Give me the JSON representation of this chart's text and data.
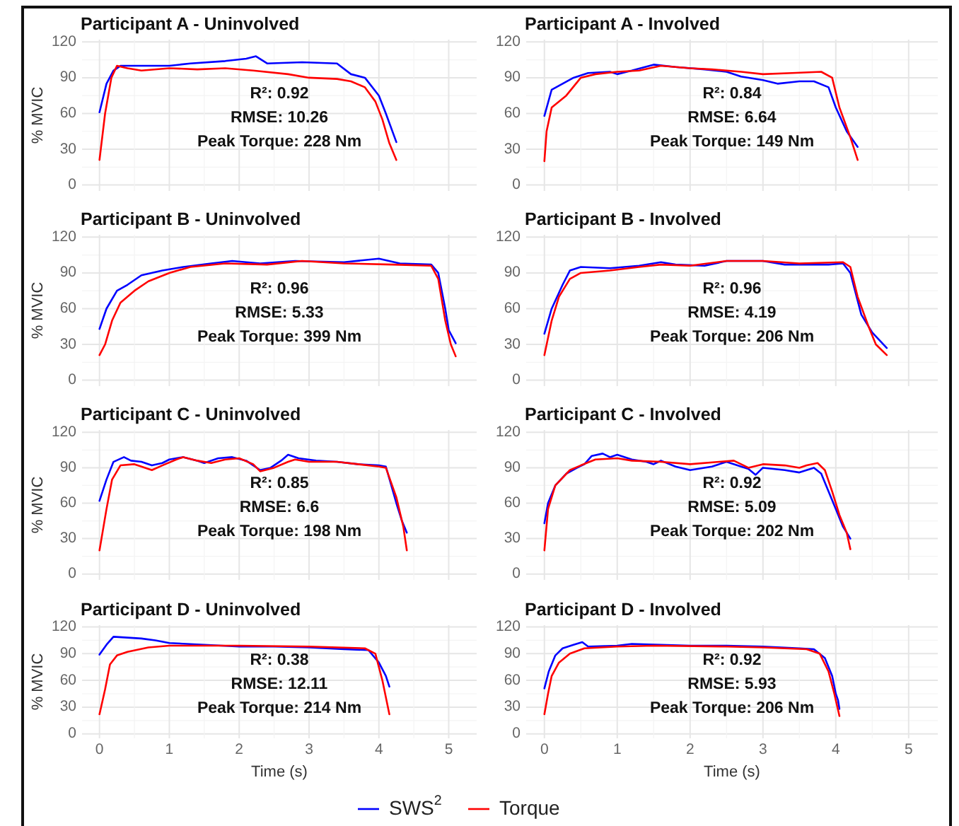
{
  "chart_data": [
    {
      "type": "line",
      "title": "Participant A - Uninvolved",
      "ylabel": "% MVIC",
      "xlim": [
        -0.25,
        5.4
      ],
      "ylim": [
        -5,
        122
      ],
      "xticks": [
        0,
        {
          "value": 0.5,
          "label": null
        },
        1,
        {
          "value": 1.5,
          "label": null
        },
        2,
        {
          "value": 2.5,
          "label": null
        },
        3,
        {
          "value": 3.5,
          "label": null
        },
        4,
        {
          "value": 4.5,
          "label": null
        },
        5
      ],
      "yticks": [
        0,
        {
          "value": 15,
          "label": null
        },
        30,
        {
          "value": 45,
          "label": null
        },
        60,
        {
          "value": 75,
          "label": null
        },
        90,
        {
          "value": 105,
          "label": null
        },
        120
      ],
      "grid": true,
      "tick_labels": "y",
      "annotations": [
        "R²: 0.92",
        "RMSE: 10.26",
        "Peak Torque: 228 Nm"
      ],
      "series": [
        {
          "color": "#0000ff",
          "x": [
            0,
            0.1,
            0.2,
            0.3,
            0.6,
            1.0,
            1.3,
            1.8,
            2.1,
            2.24,
            2.4,
            2.9,
            3.4,
            3.6,
            3.8,
            4.0,
            4.1,
            4.25
          ],
          "values": [
            61,
            85,
            96,
            100,
            100,
            100,
            102,
            104,
            106,
            108,
            102,
            103,
            102,
            93,
            90,
            75,
            60,
            36
          ]
        },
        {
          "color": "#ff0000",
          "x": [
            0,
            0.08,
            0.17,
            0.25,
            0.4,
            0.6,
            1.0,
            1.4,
            1.8,
            2.2,
            2.7,
            3.0,
            3.4,
            3.6,
            3.8,
            3.95,
            4.05,
            4.15,
            4.25
          ],
          "values": [
            21,
            60,
            90,
            100,
            98,
            96,
            98,
            97,
            98,
            96,
            93,
            90,
            89,
            87,
            82,
            70,
            55,
            35,
            21
          ]
        }
      ]
    },
    {
      "type": "line",
      "title": "Participant A - Involved",
      "xlim": [
        -0.25,
        5.4
      ],
      "ylim": [
        -5,
        122
      ],
      "xticks": [
        0,
        {
          "value": 0.5,
          "label": null
        },
        1,
        {
          "value": 1.5,
          "label": null
        },
        2,
        {
          "value": 2.5,
          "label": null
        },
        3,
        {
          "value": 3.5,
          "label": null
        },
        4,
        {
          "value": 4.5,
          "label": null
        },
        5
      ],
      "yticks": [
        0,
        {
          "value": 15,
          "label": null
        },
        30,
        {
          "value": 45,
          "label": null
        },
        60,
        {
          "value": 75,
          "label": null
        },
        90,
        {
          "value": 105,
          "label": null
        },
        120
      ],
      "grid": true,
      "tick_labels": "y",
      "annotations": [
        "R²: 0.84",
        "RMSE: 6.64",
        "Peak Torque: 149 Nm"
      ],
      "series": [
        {
          "color": "#0000ff",
          "x": [
            0,
            0.1,
            0.25,
            0.4,
            0.6,
            0.9,
            1.0,
            1.2,
            1.5,
            1.8,
            2.2,
            2.5,
            2.7,
            3.0,
            3.2,
            3.5,
            3.7,
            3.9,
            4.0,
            4.15,
            4.3
          ],
          "values": [
            58,
            80,
            85,
            90,
            94,
            95,
            93,
            96,
            101,
            99,
            97,
            95,
            91,
            88,
            85,
            87,
            87,
            82,
            65,
            45,
            32
          ]
        },
        {
          "color": "#ff0000",
          "x": [
            0,
            0.03,
            0.1,
            0.3,
            0.5,
            0.7,
            1.0,
            1.3,
            1.6,
            2.0,
            2.3,
            2.7,
            3.0,
            3.4,
            3.8,
            3.95,
            4.05,
            4.2,
            4.3
          ],
          "values": [
            20,
            45,
            65,
            75,
            90,
            93,
            95,
            96,
            100,
            98,
            97,
            95,
            93,
            94,
            95,
            90,
            65,
            40,
            21
          ]
        }
      ]
    },
    {
      "type": "line",
      "title": "Participant B - Uninvolved",
      "ylabel": "% MVIC",
      "xlim": [
        -0.25,
        5.4
      ],
      "ylim": [
        -5,
        122
      ],
      "xticks": [
        0,
        {
          "value": 0.5,
          "label": null
        },
        1,
        {
          "value": 1.5,
          "label": null
        },
        2,
        {
          "value": 2.5,
          "label": null
        },
        3,
        {
          "value": 3.5,
          "label": null
        },
        4,
        {
          "value": 4.5,
          "label": null
        },
        5
      ],
      "yticks": [
        0,
        {
          "value": 15,
          "label": null
        },
        30,
        {
          "value": 45,
          "label": null
        },
        60,
        {
          "value": 75,
          "label": null
        },
        90,
        {
          "value": 105,
          "label": null
        },
        120
      ],
      "grid": true,
      "tick_labels": "y",
      "annotations": [
        "R²: 0.96",
        "RMSE: 5.33",
        "Peak Torque: 399 Nm"
      ],
      "series": [
        {
          "color": "#0000ff",
          "x": [
            0,
            0.1,
            0.25,
            0.4,
            0.6,
            0.9,
            1.2,
            1.6,
            1.9,
            2.3,
            2.8,
            3.5,
            4.0,
            4.3,
            4.75,
            4.85,
            4.95,
            5.0,
            5.1
          ],
          "values": [
            43,
            60,
            75,
            80,
            88,
            92,
            95,
            98,
            100,
            98,
            100,
            99,
            102,
            98,
            97,
            90,
            60,
            42,
            31
          ]
        },
        {
          "color": "#ff0000",
          "x": [
            0,
            0.08,
            0.18,
            0.3,
            0.5,
            0.7,
            1.0,
            1.3,
            1.8,
            2.4,
            2.9,
            3.5,
            4.2,
            4.75,
            4.85,
            4.95,
            5.03,
            5.1
          ],
          "values": [
            21,
            30,
            50,
            65,
            75,
            83,
            90,
            95,
            98,
            97,
            100,
            98,
            97,
            96,
            85,
            50,
            30,
            20
          ]
        }
      ]
    },
    {
      "type": "line",
      "title": "Participant B - Involved",
      "xlim": [
        -0.25,
        5.4
      ],
      "ylim": [
        -5,
        122
      ],
      "xticks": [
        0,
        {
          "value": 0.5,
          "label": null
        },
        1,
        {
          "value": 1.5,
          "label": null
        },
        2,
        {
          "value": 2.5,
          "label": null
        },
        3,
        {
          "value": 3.5,
          "label": null
        },
        4,
        {
          "value": 4.5,
          "label": null
        },
        5
      ],
      "yticks": [
        0,
        {
          "value": 15,
          "label": null
        },
        30,
        {
          "value": 45,
          "label": null
        },
        60,
        {
          "value": 75,
          "label": null
        },
        90,
        {
          "value": 105,
          "label": null
        },
        120
      ],
      "grid": true,
      "tick_labels": "y",
      "annotations": [
        "R²: 0.96",
        "RMSE: 4.19",
        "Peak Torque: 206 Nm"
      ],
      "series": [
        {
          "color": "#0000ff",
          "x": [
            0,
            0.1,
            0.25,
            0.35,
            0.5,
            0.9,
            1.3,
            1.6,
            1.8,
            2.2,
            2.5,
            3.0,
            3.3,
            3.9,
            4.1,
            4.2,
            4.35,
            4.5,
            4.7
          ],
          "values": [
            39,
            60,
            80,
            92,
            95,
            94,
            96,
            99,
            97,
            96,
            100,
            100,
            97,
            97,
            98,
            90,
            55,
            40,
            27
          ]
        },
        {
          "color": "#ff0000",
          "x": [
            0,
            0.1,
            0.2,
            0.35,
            0.5,
            0.9,
            1.3,
            1.6,
            2.0,
            2.5,
            3.0,
            3.5,
            4.1,
            4.2,
            4.3,
            4.45,
            4.55,
            4.7
          ],
          "values": [
            21,
            50,
            70,
            85,
            90,
            92,
            95,
            97,
            96,
            100,
            100,
            98,
            99,
            95,
            70,
            45,
            30,
            21
          ]
        }
      ]
    },
    {
      "type": "line",
      "title": "Participant C - Uninvolved",
      "ylabel": "% MVIC",
      "xlim": [
        -0.25,
        5.4
      ],
      "ylim": [
        -5,
        122
      ],
      "xticks": [
        0,
        {
          "value": 0.5,
          "label": null
        },
        1,
        {
          "value": 1.5,
          "label": null
        },
        2,
        {
          "value": 2.5,
          "label": null
        },
        3,
        {
          "value": 3.5,
          "label": null
        },
        4,
        {
          "value": 4.5,
          "label": null
        },
        5
      ],
      "yticks": [
        0,
        {
          "value": 15,
          "label": null
        },
        30,
        {
          "value": 45,
          "label": null
        },
        60,
        {
          "value": 75,
          "label": null
        },
        90,
        {
          "value": 105,
          "label": null
        },
        120
      ],
      "grid": true,
      "tick_labels": "y",
      "annotations": [
        "R²: 0.85",
        "RMSE: 6.6",
        "Peak Torque: 198 Nm"
      ],
      "series": [
        {
          "color": "#0000ff",
          "x": [
            0,
            0.1,
            0.2,
            0.35,
            0.45,
            0.6,
            0.75,
            0.9,
            1.0,
            1.2,
            1.4,
            1.5,
            1.7,
            1.9,
            2.1,
            2.3,
            2.45,
            2.6,
            2.7,
            2.85,
            3.1,
            3.4,
            3.7,
            4.0,
            4.1,
            4.25,
            4.33,
            4.4
          ],
          "values": [
            62,
            80,
            95,
            99,
            96,
            95,
            92,
            94,
            97,
            99,
            96,
            94,
            98,
            99,
            96,
            88,
            90,
            96,
            101,
            98,
            96,
            95,
            93,
            92,
            91,
            60,
            45,
            35
          ]
        },
        {
          "color": "#ff0000",
          "x": [
            0,
            0.1,
            0.18,
            0.3,
            0.5,
            0.6,
            0.75,
            0.9,
            1.1,
            1.2,
            1.4,
            1.6,
            1.8,
            2.0,
            2.2,
            2.3,
            2.5,
            2.7,
            2.8,
            3.0,
            3.4,
            3.7,
            4.0,
            4.1,
            4.25,
            4.35,
            4.4
          ],
          "values": [
            20,
            55,
            80,
            92,
            93,
            91,
            88,
            92,
            97,
            99,
            96,
            94,
            97,
            98,
            93,
            87,
            90,
            95,
            97,
            95,
            95,
            93,
            91,
            90,
            65,
            40,
            20
          ]
        }
      ]
    },
    {
      "type": "line",
      "title": "Participant C - Involved",
      "xlim": [
        -0.25,
        5.4
      ],
      "ylim": [
        -5,
        122
      ],
      "xticks": [
        0,
        {
          "value": 0.5,
          "label": null
        },
        1,
        {
          "value": 1.5,
          "label": null
        },
        2,
        {
          "value": 2.5,
          "label": null
        },
        3,
        {
          "value": 3.5,
          "label": null
        },
        4,
        {
          "value": 4.5,
          "label": null
        },
        5
      ],
      "yticks": [
        0,
        {
          "value": 15,
          "label": null
        },
        30,
        {
          "value": 45,
          "label": null
        },
        60,
        {
          "value": 75,
          "label": null
        },
        90,
        {
          "value": 105,
          "label": null
        },
        120
      ],
      "grid": true,
      "tick_labels": "y",
      "annotations": [
        "R²: 0.92",
        "RMSE: 5.09",
        "Peak Torque: 202 Nm"
      ],
      "series": [
        {
          "color": "#0000ff",
          "x": [
            0,
            0.05,
            0.15,
            0.3,
            0.45,
            0.55,
            0.65,
            0.8,
            0.9,
            1.0,
            1.2,
            1.4,
            1.5,
            1.6,
            1.8,
            2.0,
            2.3,
            2.5,
            2.7,
            2.8,
            2.9,
            3.0,
            3.3,
            3.5,
            3.7,
            3.8,
            3.9,
            4.0,
            4.1,
            4.2
          ],
          "values": [
            43,
            60,
            75,
            85,
            90,
            93,
            100,
            102,
            99,
            101,
            97,
            95,
            93,
            96,
            91,
            88,
            91,
            95,
            91,
            89,
            84,
            90,
            88,
            86,
            90,
            85,
            70,
            55,
            40,
            30
          ]
        },
        {
          "color": "#ff0000",
          "x": [
            0,
            0.05,
            0.15,
            0.35,
            0.5,
            0.7,
            1.0,
            1.2,
            1.6,
            2.0,
            2.4,
            2.6,
            2.8,
            3.0,
            3.3,
            3.5,
            3.6,
            3.75,
            3.85,
            3.95,
            4.05,
            4.15,
            4.2
          ],
          "values": [
            20,
            55,
            75,
            88,
            92,
            97,
            98,
            96,
            95,
            93,
            95,
            96,
            90,
            93,
            92,
            90,
            92,
            94,
            88,
            70,
            50,
            35,
            21
          ]
        }
      ]
    },
    {
      "type": "line",
      "title": "Participant D - Uninvolved",
      "ylabel": "% MVIC",
      "xlabel": "Time (s)",
      "xlim": [
        -0.25,
        5.4
      ],
      "ylim": [
        -5,
        122
      ],
      "xticks": [
        0,
        {
          "value": 0.5,
          "label": null
        },
        1,
        {
          "value": 1.5,
          "label": null
        },
        2,
        {
          "value": 2.5,
          "label": null
        },
        3,
        {
          "value": 3.5,
          "label": null
        },
        4,
        {
          "value": 4.5,
          "label": null
        },
        5
      ],
      "yticks": [
        0,
        {
          "value": 15,
          "label": null
        },
        30,
        {
          "value": 45,
          "label": null
        },
        60,
        {
          "value": 75,
          "label": null
        },
        90,
        {
          "value": 105,
          "label": null
        },
        120
      ],
      "grid": true,
      "annotations": [
        "R²: 0.38",
        "RMSE: 12.11",
        "Peak Torque: 214 Nm"
      ],
      "series": [
        {
          "color": "#0000ff",
          "x": [
            0,
            0.1,
            0.2,
            0.4,
            0.6,
            0.8,
            1.0,
            1.5,
            2.0,
            2.5,
            3.0,
            3.5,
            3.85,
            4.0,
            4.1,
            4.15
          ],
          "values": [
            89,
            100,
            109,
            108,
            107,
            105,
            102,
            100,
            98,
            98,
            97,
            95,
            94,
            80,
            65,
            53
          ]
        },
        {
          "color": "#ff0000",
          "x": [
            0,
            0.08,
            0.15,
            0.25,
            0.4,
            0.7,
            1.0,
            2.0,
            3.0,
            3.8,
            3.95,
            4.05,
            4.15
          ],
          "values": [
            22,
            50,
            78,
            88,
            92,
            97,
            99,
            99,
            98,
            96,
            90,
            60,
            22
          ]
        }
      ]
    },
    {
      "type": "line",
      "title": "Participant D - Involved",
      "xlabel": "Time (s)",
      "xlim": [
        -0.25,
        5.4
      ],
      "ylim": [
        -5,
        122
      ],
      "xticks": [
        0,
        {
          "value": 0.5,
          "label": null
        },
        1,
        {
          "value": 1.5,
          "label": null
        },
        2,
        {
          "value": 2.5,
          "label": null
        },
        3,
        {
          "value": 3.5,
          "label": null
        },
        4,
        {
          "value": 4.5,
          "label": null
        },
        5
      ],
      "yticks": [
        0,
        {
          "value": 15,
          "label": null
        },
        30,
        {
          "value": 45,
          "label": null
        },
        60,
        {
          "value": 75,
          "label": null
        },
        90,
        {
          "value": 105,
          "label": null
        },
        120
      ],
      "grid": true,
      "legend": "bottom",
      "annotations": [
        "R²: 0.92",
        "RMSE: 5.93",
        "Peak Torque: 206 Nm"
      ],
      "series": [
        {
          "name": "SWS$^{2}$",
          "color": "#0000ff",
          "x": [
            0,
            0.06,
            0.15,
            0.25,
            0.4,
            0.52,
            0.6,
            1.0,
            1.2,
            1.6,
            2.0,
            2.5,
            3.0,
            3.5,
            3.7,
            3.85,
            3.95,
            4.0,
            4.03,
            4.05
          ],
          "values": [
            51,
            70,
            88,
            96,
            100,
            103,
            98,
            99,
            101,
            100,
            99,
            99,
            98,
            96,
            95,
            85,
            65,
            45,
            38,
            28
          ]
        },
        {
          "name": "Torque",
          "color": "#ff0000",
          "x": [
            0,
            0.05,
            0.1,
            0.2,
            0.35,
            0.55,
            1.0,
            1.5,
            2.5,
            3.0,
            3.6,
            3.78,
            3.9,
            3.98,
            4.05
          ],
          "values": [
            22,
            45,
            65,
            80,
            90,
            96,
            98,
            99,
            98,
            97,
            95,
            90,
            70,
            45,
            20
          ]
        }
      ]
    }
  ]
}
